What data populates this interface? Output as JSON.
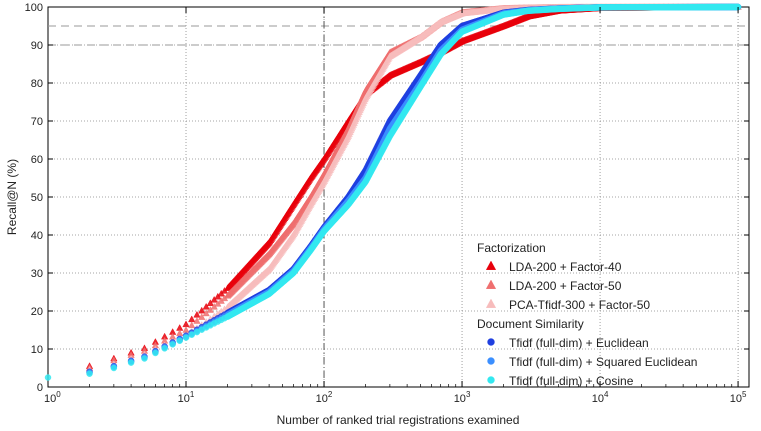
{
  "chart_data": {
    "type": "scatter",
    "title": "",
    "xlabel": "Number of ranked trial registrations examined",
    "ylabel": "Recall@N (%)",
    "xscale": "log",
    "xlim": [
      1,
      120000
    ],
    "ylim": [
      0,
      100
    ],
    "x_ticks": [
      {
        "value": 1,
        "base": "10",
        "exp": "0"
      },
      {
        "value": 10,
        "base": "10",
        "exp": "1"
      },
      {
        "value": 100,
        "base": "10",
        "exp": "2"
      },
      {
        "value": 1000,
        "base": "10",
        "exp": "3"
      },
      {
        "value": 10000,
        "base": "10",
        "exp": "4"
      },
      {
        "value": 100000,
        "base": "10",
        "exp": "5"
      }
    ],
    "y_ticks": [
      "0",
      "10",
      "20",
      "30",
      "40",
      "50",
      "60",
      "70",
      "80",
      "90",
      "100"
    ],
    "grid": true,
    "reference_lines": {
      "horizontal_dashed_y": [
        95,
        90
      ],
      "vertical_dashdot_x": [
        100
      ]
    },
    "legend": {
      "position": "lower-right",
      "groups": [
        {
          "title": "Factorization",
          "entries": [
            {
              "label": "LDA-200 + Factor-40",
              "marker": "triangle",
              "color": "#e8000b"
            },
            {
              "label": "LDA-200 + Factor-50",
              "marker": "triangle",
              "color": "#ef6f6f"
            },
            {
              "label": "PCA-Tfidf-300  + Factor-50",
              "marker": "triangle",
              "color": "#f7bcbc"
            }
          ]
        },
        {
          "title": "Document Similarity",
          "entries": [
            {
              "label": "Tfidf (full-dim) + Euclidean",
              "marker": "circle",
              "color": "#1f3fe0"
            },
            {
              "label": "Tfidf (full-dim) + Squared Euclidean",
              "marker": "circle",
              "color": "#3b8fff"
            },
            {
              "label": "Tfidf (full-dim) + Cosine",
              "marker": "circle",
              "color": "#33e8f0"
            }
          ]
        }
      ]
    },
    "series": [
      {
        "name": "LDA-200 + Factor-40",
        "marker": "triangle",
        "color": "#e8000b",
        "points": [
          [
            2,
            5.5
          ],
          [
            3,
            7.5
          ],
          [
            5,
            10.2
          ],
          [
            10,
            16.5
          ],
          [
            20,
            26
          ],
          [
            40,
            38
          ],
          [
            60,
            48
          ],
          [
            80,
            55
          ],
          [
            100,
            60
          ],
          [
            150,
            70
          ],
          [
            200,
            77
          ],
          [
            300,
            82
          ],
          [
            500,
            85.5
          ],
          [
            700,
            88
          ],
          [
            1000,
            91
          ],
          [
            2000,
            95
          ],
          [
            3000,
            97.5
          ],
          [
            5000,
            99
          ],
          [
            10000,
            99.7
          ],
          [
            100000,
            100
          ]
        ]
      },
      {
        "name": "LDA-200 + Factor-50",
        "marker": "triangle",
        "color": "#ef6f6f",
        "points": [
          [
            2,
            5
          ],
          [
            3,
            7
          ],
          [
            5,
            9.5
          ],
          [
            10,
            15
          ],
          [
            20,
            24
          ],
          [
            40,
            35
          ],
          [
            60,
            43
          ],
          [
            80,
            50
          ],
          [
            100,
            56
          ],
          [
            150,
            68
          ],
          [
            200,
            78
          ],
          [
            300,
            88
          ],
          [
            500,
            92
          ],
          [
            700,
            96
          ],
          [
            1000,
            98.5
          ],
          [
            2000,
            99.6
          ],
          [
            5000,
            99.9
          ],
          [
            100000,
            100
          ]
        ]
      },
      {
        "name": "PCA-Tfidf-300  + Factor-50",
        "marker": "triangle",
        "color": "#f7bcbc",
        "points": [
          [
            2,
            4.5
          ],
          [
            3,
            6
          ],
          [
            5,
            8.5
          ],
          [
            10,
            13.5
          ],
          [
            20,
            21
          ],
          [
            40,
            31
          ],
          [
            60,
            40
          ],
          [
            80,
            48
          ],
          [
            100,
            54
          ],
          [
            150,
            66
          ],
          [
            200,
            76
          ],
          [
            300,
            87
          ],
          [
            500,
            92
          ],
          [
            700,
            96
          ],
          [
            1000,
            98.3
          ],
          [
            2000,
            99.5
          ],
          [
            5000,
            99.9
          ],
          [
            100000,
            100
          ]
        ]
      },
      {
        "name": "Tfidf (full-dim) + Euclidean",
        "marker": "circle",
        "color": "#1f3fe0",
        "points": [
          [
            2,
            4
          ],
          [
            3,
            5.5
          ],
          [
            5,
            8
          ],
          [
            10,
            13.5
          ],
          [
            20,
            19.5
          ],
          [
            40,
            25.5
          ],
          [
            60,
            31
          ],
          [
            80,
            37
          ],
          [
            100,
            42
          ],
          [
            150,
            50
          ],
          [
            200,
            57
          ],
          [
            300,
            70
          ],
          [
            500,
            82
          ],
          [
            700,
            90
          ],
          [
            1000,
            95
          ],
          [
            2000,
            98.5
          ],
          [
            3000,
            99.2
          ],
          [
            5000,
            99.6
          ],
          [
            10000,
            99.9
          ],
          [
            100000,
            100
          ]
        ]
      },
      {
        "name": "Tfidf (full-dim) + Squared Euclidean",
        "marker": "circle",
        "color": "#3b8fff",
        "points": [
          [
            2,
            3.8
          ],
          [
            3,
            5.3
          ],
          [
            5,
            7.8
          ],
          [
            10,
            13.2
          ],
          [
            20,
            19
          ],
          [
            40,
            25
          ],
          [
            60,
            30.5
          ],
          [
            80,
            36.5
          ],
          [
            100,
            41.5
          ],
          [
            150,
            49
          ],
          [
            200,
            55
          ],
          [
            300,
            68
          ],
          [
            500,
            80
          ],
          [
            700,
            88.5
          ],
          [
            1000,
            94
          ],
          [
            2000,
            98.3
          ],
          [
            3000,
            99.1
          ],
          [
            5000,
            99.6
          ],
          [
            10000,
            99.9
          ],
          [
            100000,
            100
          ]
        ]
      },
      {
        "name": "Tfidf (full-dim) + Cosine",
        "marker": "circle",
        "color": "#33e8f0",
        "points": [
          [
            1,
            2.5
          ],
          [
            2,
            3.5
          ],
          [
            3,
            5
          ],
          [
            5,
            7.5
          ],
          [
            10,
            13
          ],
          [
            20,
            18.5
          ],
          [
            40,
            24.5
          ],
          [
            60,
            30
          ],
          [
            80,
            36
          ],
          [
            100,
            41
          ],
          [
            150,
            48
          ],
          [
            200,
            54
          ],
          [
            300,
            66
          ],
          [
            500,
            79
          ],
          [
            700,
            87.5
          ],
          [
            1000,
            93.5
          ],
          [
            2000,
            98
          ],
          [
            3000,
            99
          ],
          [
            5000,
            99.5
          ],
          [
            10000,
            99.9
          ],
          [
            100000,
            100
          ]
        ]
      }
    ]
  }
}
